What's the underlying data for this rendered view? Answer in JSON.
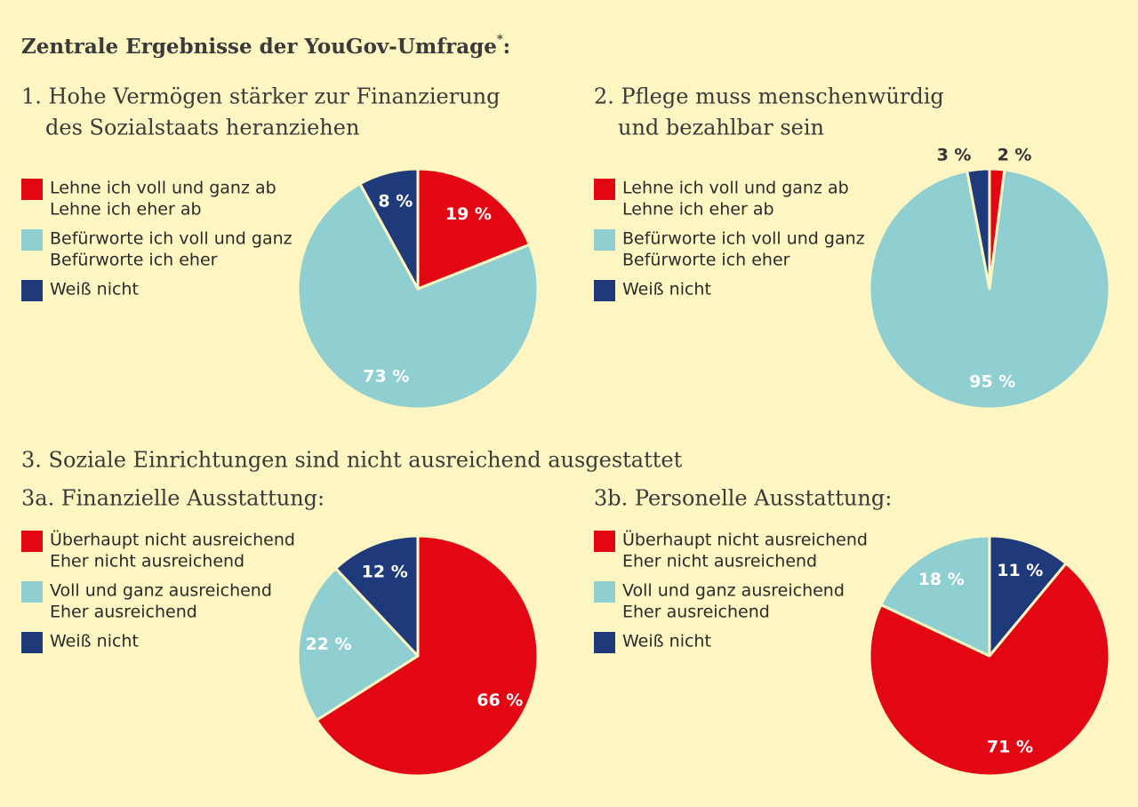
{
  "title": {
    "text": "Zentrale Ergebnisse der YouGov-Umfrage",
    "footnote": "*",
    "end": ":"
  },
  "section_title": "3. Soziale Einrichtungen sind nicht ausreichend ausgestattet",
  "chart_data": [
    {
      "type": "pie",
      "title": [
        "1. Hohe Vermögen stärker zur Finanzierung",
        "des Sozialstaats heranziehen"
      ],
      "categories": [
        [
          "Lehne ich voll und ganz ab",
          "Lehne ich eher ab"
        ],
        [
          "Befürworte ich voll und ganz",
          "Befürworte ich eher"
        ],
        [
          "Weiß nicht"
        ]
      ],
      "values": [
        19,
        73,
        8
      ],
      "value_labels": [
        "19 %",
        "73 %",
        "8 %"
      ],
      "colors": [
        "#e30613",
        "#8fcfd1",
        "#1f3a7a"
      ]
    },
    {
      "type": "pie",
      "title": [
        "2. Pflege muss menschenwürdig",
        "und bezahlbar sein"
      ],
      "categories": [
        [
          "Lehne ich voll und ganz ab",
          "Lehne ich eher ab"
        ],
        [
          "Befürworte ich voll und ganz",
          "Befürworte ich eher"
        ],
        [
          "Weiß nicht"
        ]
      ],
      "values": [
        2,
        95,
        3
      ],
      "value_labels": [
        "2 %",
        "95 %",
        "3 %"
      ],
      "colors": [
        "#e30613",
        "#8fcfd1",
        "#1f3a7a"
      ]
    },
    {
      "type": "pie",
      "title": [
        "3a. Finanzielle Ausstattung:"
      ],
      "categories": [
        [
          "Überhaupt nicht ausreichend",
          "Eher nicht ausreichend"
        ],
        [
          "Voll und ganz ausreichend",
          "Eher ausreichend"
        ],
        [
          "Weiß nicht"
        ]
      ],
      "values": [
        66,
        22,
        12
      ],
      "value_labels": [
        "66 %",
        "22 %",
        "12 %"
      ],
      "colors": [
        "#e30613",
        "#8fcfd1",
        "#1f3a7a"
      ]
    },
    {
      "type": "pie",
      "title": [
        "3b. Personelle Ausstattung:"
      ],
      "categories": [
        [
          "Überhaupt nicht ausreichend",
          "Eher nicht ausreichend"
        ],
        [
          "Voll und ganz ausreichend",
          "Eher ausreichend"
        ],
        [
          "Weiß nicht"
        ]
      ],
      "values": [
        71,
        18,
        11
      ],
      "value_labels": [
        "71 %",
        "18 %",
        "11 %"
      ],
      "colors": [
        "#e30613",
        "#8fcfd1",
        "#1f3a7a"
      ]
    }
  ]
}
